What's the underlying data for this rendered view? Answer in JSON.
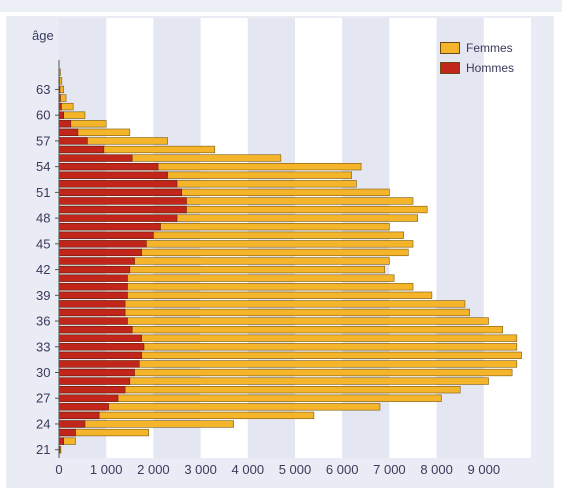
{
  "chart_data": {
    "type": "bar",
    "orientation": "horizontal",
    "ylabel": "âge",
    "x_ticks": [
      "0",
      "1 000",
      "2 000",
      "3 000",
      "4 000",
      "5 000",
      "6 000",
      "7 000",
      "8 000",
      "9 000"
    ],
    "y_ticks": [
      "21",
      "24",
      "27",
      "30",
      "33",
      "36",
      "39",
      "42",
      "45",
      "48",
      "51",
      "54",
      "57",
      "60",
      "63"
    ],
    "xlim": [
      0,
      10000
    ],
    "ylim": [
      20.5,
      65.5
    ],
    "legend_position": "top-right",
    "ages": [
      21,
      22,
      23,
      24,
      25,
      26,
      27,
      28,
      29,
      30,
      31,
      32,
      33,
      34,
      35,
      36,
      37,
      38,
      39,
      40,
      41,
      42,
      43,
      44,
      45,
      46,
      47,
      48,
      49,
      50,
      51,
      52,
      53,
      54,
      55,
      56,
      57,
      58,
      59,
      60,
      61,
      62,
      63,
      64,
      65
    ],
    "series": [
      {
        "name": "Femmes",
        "color": "#f5b52a",
        "values": [
          40,
          350,
          1900,
          3700,
          5400,
          6800,
          8100,
          8500,
          9100,
          9600,
          9700,
          9800,
          9700,
          9700,
          9400,
          9100,
          8700,
          8600,
          7900,
          7500,
          7100,
          6900,
          7000,
          7400,
          7500,
          7300,
          7000,
          7600,
          7800,
          7500,
          7000,
          6300,
          6200,
          6400,
          4700,
          3300,
          2300,
          1500,
          1000,
          550,
          300,
          150,
          100,
          60,
          30
        ]
      },
      {
        "name": "Hommes",
        "color": "#c2261a",
        "values": [
          20,
          100,
          350,
          550,
          850,
          1050,
          1250,
          1400,
          1500,
          1600,
          1700,
          1750,
          1800,
          1750,
          1550,
          1450,
          1400,
          1400,
          1450,
          1450,
          1450,
          1500,
          1600,
          1750,
          1850,
          2000,
          2150,
          2500,
          2700,
          2700,
          2600,
          2500,
          2300,
          2100,
          1550,
          950,
          600,
          400,
          250,
          100,
          50,
          30,
          20,
          10,
          5
        ]
      }
    ]
  }
}
